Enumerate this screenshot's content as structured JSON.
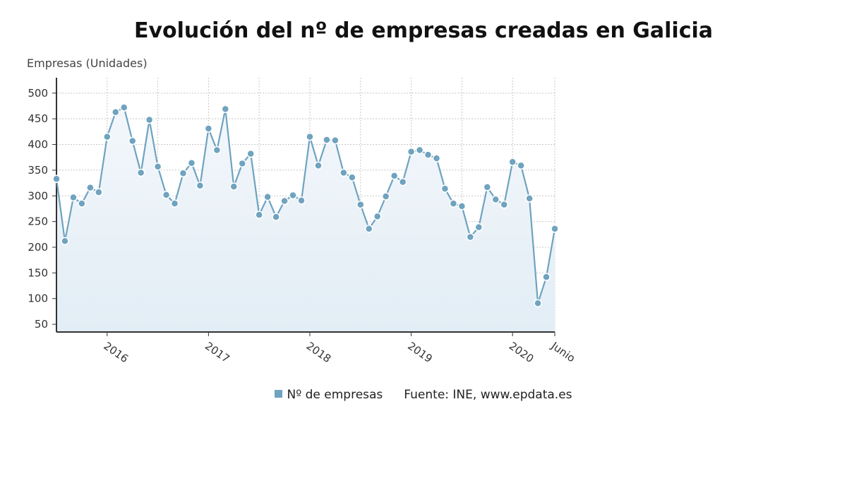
{
  "chart_data": {
    "type": "line",
    "title": "Evolución del nº de empresas creadas en Galicia",
    "ylabel": "Empresas (Unidades)",
    "xlabel": "",
    "ylim": [
      35,
      530
    ],
    "yticks": [
      50,
      100,
      150,
      200,
      250,
      300,
      350,
      400,
      450,
      500
    ],
    "grid": true,
    "fill_area": true,
    "legend_position": "bottom",
    "source": "Fuente: INE, www.epdata.es",
    "x_tick_labels": [
      {
        "label": "2016",
        "index": 6
      },
      {
        "label": "2017",
        "index": 18
      },
      {
        "label": "2018",
        "index": 30
      },
      {
        "label": "2019",
        "index": 42
      },
      {
        "label": "2020",
        "index": 54
      },
      {
        "label": "Junio",
        "index": 59
      }
    ],
    "colors": {
      "line": "#6fa3bf",
      "marker_fill": "#6fa3bf",
      "marker_stroke": "#ffffff",
      "area_top": "#f3f7fb",
      "area_bottom": "#e2edf5"
    },
    "series": [
      {
        "name": "Nº de empresas",
        "values": [
          333,
          212,
          297,
          285,
          316,
          307,
          415,
          463,
          472,
          407,
          345,
          448,
          357,
          302,
          285,
          344,
          364,
          320,
          431,
          389,
          469,
          318,
          363,
          382,
          263,
          298,
          259,
          290,
          301,
          291,
          415,
          359,
          409,
          408,
          345,
          336,
          283,
          236,
          260,
          299,
          339,
          327,
          386,
          389,
          380,
          373,
          314,
          285,
          280,
          220,
          239,
          317,
          293,
          283,
          366,
          359,
          295,
          91,
          142,
          236
        ]
      }
    ]
  }
}
